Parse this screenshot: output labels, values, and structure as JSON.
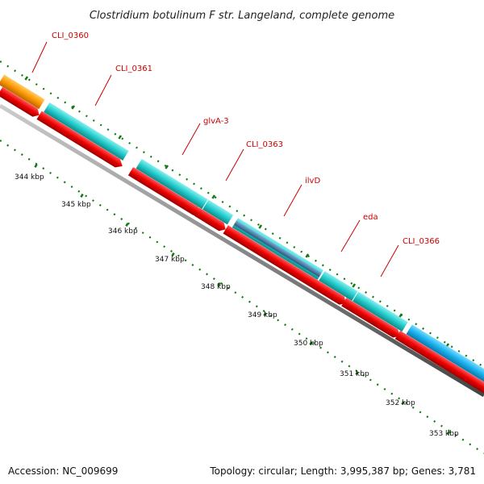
{
  "title": "Clostridium botulinum F str. Langeland, complete genome",
  "ticks": [
    "344 kbp",
    "345 kbp",
    "346 kbp",
    "347 kbp",
    "348 kbp",
    "349 kbp",
    "350 kbp",
    "351 kbp",
    "352 kbp",
    "353 kbp"
  ],
  "genes": [
    "CLI_0360",
    "CLI_0361",
    "glvA-3",
    "CLI_0363",
    "ilvD",
    "eda",
    "CLI_0366"
  ],
  "footer": {
    "accession": "Accession: NC_009699",
    "stats": "Topology: circular; Length: 3,995,387 bp; Genes: 3,781"
  },
  "colors": {
    "cds": "#ee0000",
    "gene_teal": "#22cccc",
    "gene_orange": "#ff9900",
    "gene_blue": "#1ab0ee",
    "gene_slate": "#5577aa",
    "backbone": "#888888",
    "ticks": "#117711",
    "label": "#cc0000"
  }
}
